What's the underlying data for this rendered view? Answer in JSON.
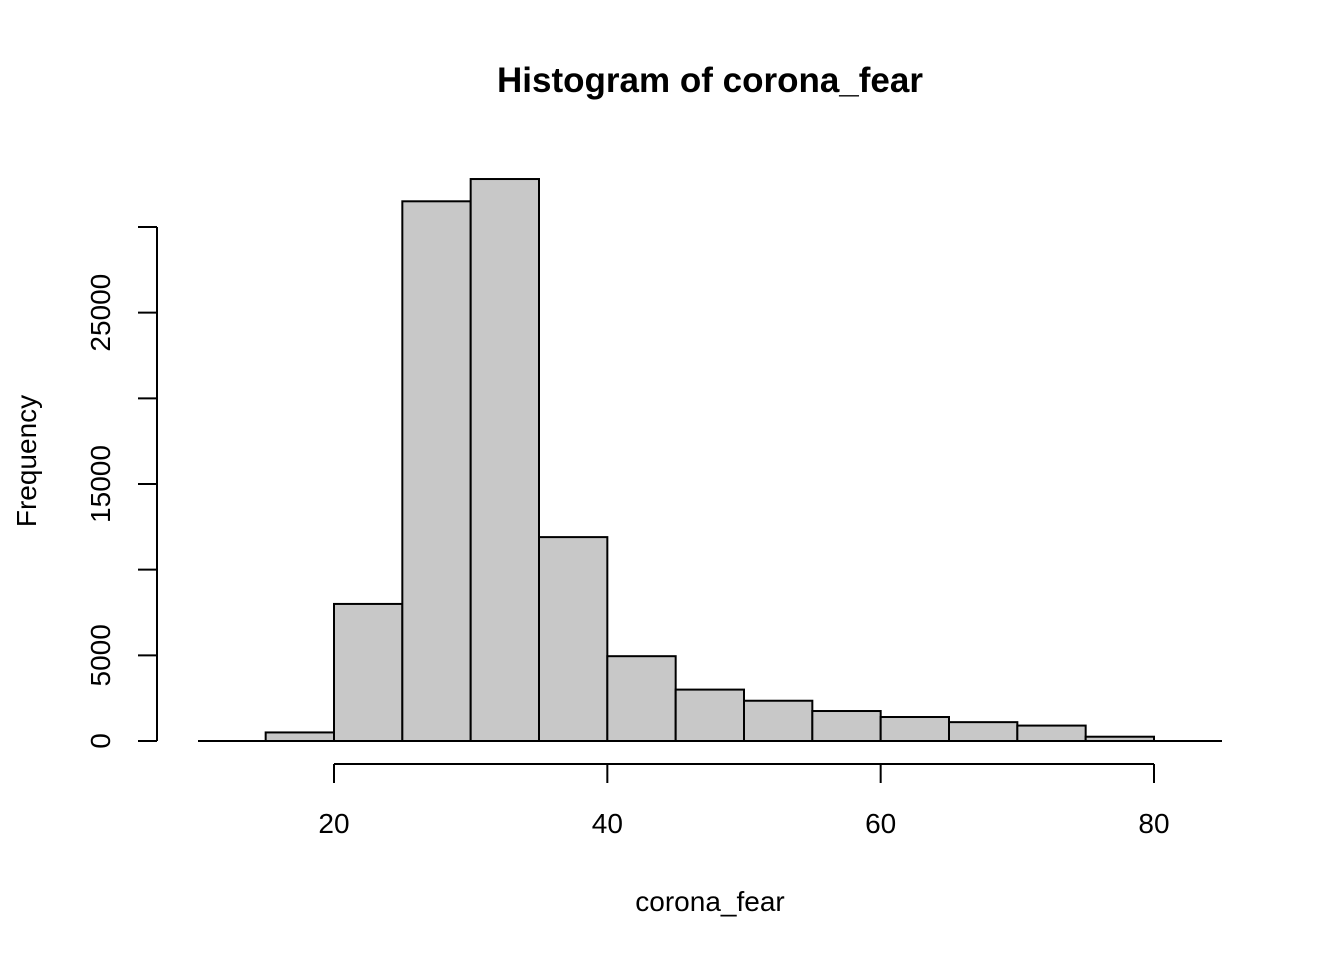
{
  "chart_data": {
    "type": "histogram",
    "title": "Histogram of corona_fear",
    "xlabel": "corona_fear",
    "ylabel": "Frequency",
    "bins": [
      {
        "start": 15,
        "end": 20,
        "count": 500
      },
      {
        "start": 20,
        "end": 25,
        "count": 8000
      },
      {
        "start": 25,
        "end": 30,
        "count": 31500
      },
      {
        "start": 30,
        "end": 35,
        "count": 32800
      },
      {
        "start": 35,
        "end": 40,
        "count": 11900
      },
      {
        "start": 40,
        "end": 45,
        "count": 4950
      },
      {
        "start": 45,
        "end": 50,
        "count": 3000
      },
      {
        "start": 50,
        "end": 55,
        "count": 2350
      },
      {
        "start": 55,
        "end": 60,
        "count": 1750
      },
      {
        "start": 60,
        "end": 65,
        "count": 1400
      },
      {
        "start": 65,
        "end": 70,
        "count": 1100
      },
      {
        "start": 70,
        "end": 75,
        "count": 900
      },
      {
        "start": 75,
        "end": 80,
        "count": 250
      }
    ],
    "x_ticks": [
      20,
      40,
      60,
      80
    ],
    "x_tick_labels": [
      "20",
      "40",
      "60",
      "80"
    ],
    "y_ticks": [
      0,
      5000,
      10000,
      15000,
      20000,
      25000,
      30000
    ],
    "y_tick_labels": [
      "0",
      "5000",
      "",
      "15000",
      "",
      "25000",
      ""
    ],
    "xlim": [
      10,
      85
    ],
    "ylim": [
      0,
      33000
    ],
    "bar_fill": "#c8c8c8",
    "bar_stroke": "#000000",
    "grid": false,
    "legend": "none"
  }
}
